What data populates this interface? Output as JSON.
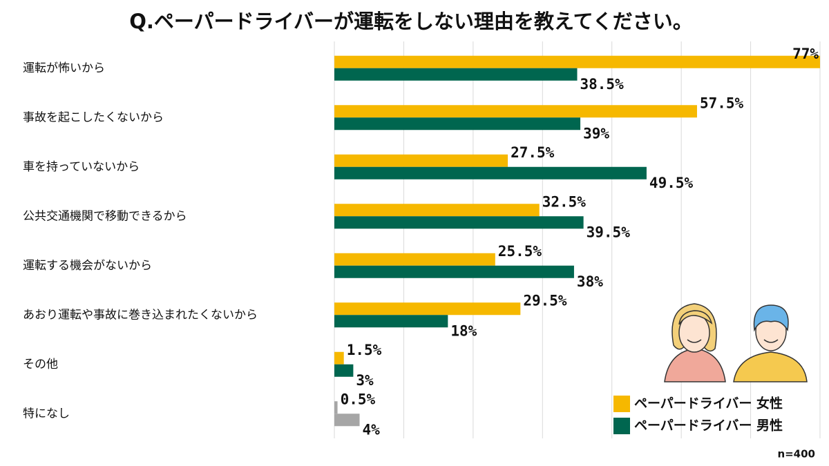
{
  "chart_data": {
    "type": "hbar",
    "title": "Q.ペーパードライバーが運転をしない理由を教えてください。",
    "categories": [
      "運転が怖いから",
      "事故を起こしたくないから",
      "車を持っていないから",
      "公共交通機関で移動できるから",
      "運転する機会がないから",
      "あおり運転や事故に巻き込まれたくないから",
      "その他",
      "特になし"
    ],
    "series": [
      {
        "name": "ペーパードライバー 女性",
        "color": "#f6b800",
        "colors": [
          "#f6b800",
          "#f6b800",
          "#f6b800",
          "#f6b800",
          "#f6b800",
          "#f6b800",
          "#f6b800",
          "#a6a6a6"
        ],
        "values": [
          77,
          57.5,
          27.5,
          32.5,
          25.5,
          29.5,
          1.5,
          0.5
        ],
        "value_labels": [
          "77%",
          "57.5%",
          "27.5%",
          "32.5%",
          "25.5%",
          "29.5%",
          "1.5%",
          "0.5%"
        ]
      },
      {
        "name": "ペーパードライバー 男性",
        "color": "#00664f",
        "colors": [
          "#00664f",
          "#00664f",
          "#00664f",
          "#00664f",
          "#00664f",
          "#00664f",
          "#00664f",
          "#a6a6a6"
        ],
        "values": [
          38.5,
          39,
          49.5,
          39.5,
          38,
          18,
          3,
          4
        ],
        "value_labels": [
          "38.5%",
          "39%",
          "49.5%",
          "39.5%",
          "38%",
          "18%",
          "3%",
          "4%"
        ]
      }
    ],
    "xlim": [
      0,
      77
    ],
    "xticks": [
      0,
      11,
      22,
      33,
      44,
      55,
      66,
      77
    ],
    "grid": true,
    "note": "n=400"
  }
}
